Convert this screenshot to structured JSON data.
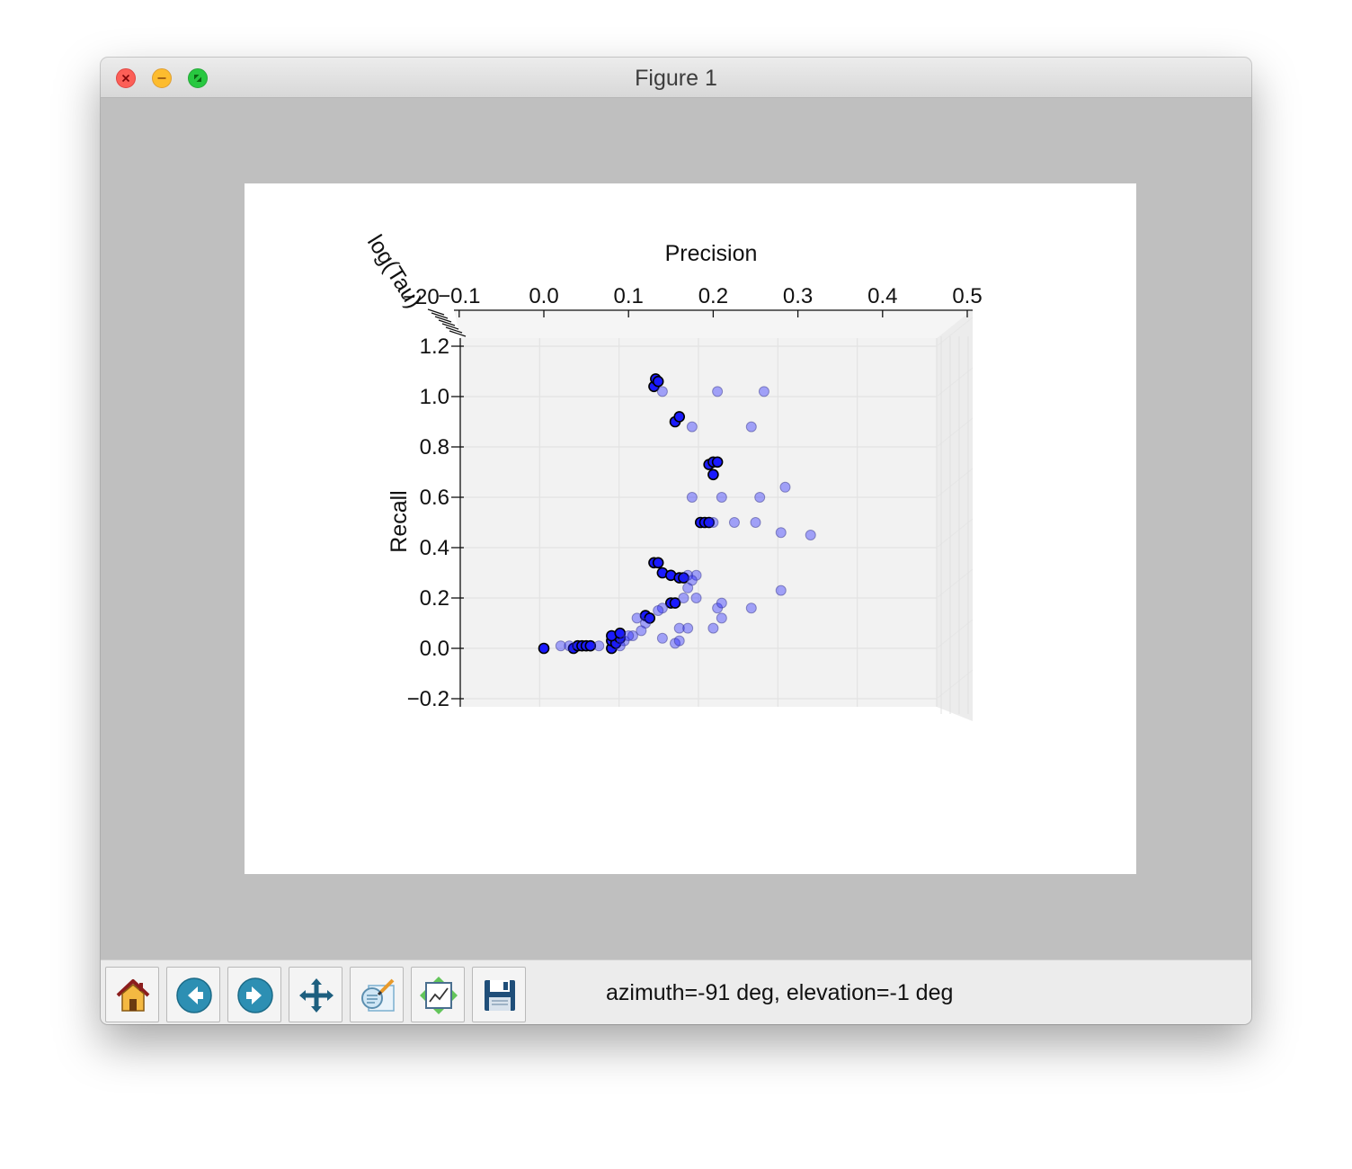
{
  "window": {
    "title": "Figure 1"
  },
  "toolbar": {
    "buttons": [
      {
        "name": "home-button",
        "icon": "home-icon"
      },
      {
        "name": "back-button",
        "icon": "arrow-left-icon"
      },
      {
        "name": "forward-button",
        "icon": "arrow-right-icon"
      },
      {
        "name": "pan-button",
        "icon": "move-arrows-icon"
      },
      {
        "name": "zoom-button",
        "icon": "zoom-rect-icon"
      },
      {
        "name": "subplots-button",
        "icon": "subplots-icon"
      },
      {
        "name": "save-button",
        "icon": "floppy-disk-icon"
      }
    ],
    "status": "azimuth=-91 deg, elevation=-1 deg"
  },
  "chart_data": {
    "type": "scatter",
    "projection": "3d",
    "view": {
      "azimuth": -91,
      "elevation": -1
    },
    "xlabel": "Precision",
    "ylabel": "Recall",
    "zlabel": "log(Tau)",
    "xlim": [
      -0.1,
      0.5
    ],
    "ylim": [
      -0.2,
      1.2
    ],
    "x_ticks": [
      "−0.1",
      "0.0",
      "0.1",
      "0.2",
      "0.3",
      "0.4",
      "0.5"
    ],
    "y_ticks": [
      "−0.2",
      "0.0",
      "0.2",
      "0.4",
      "0.6",
      "0.8",
      "1.0",
      "1.2"
    ],
    "z_tick_fragment": "−20",
    "grid": true,
    "colors": {
      "marker": "#1a1aff",
      "edge": "#000000",
      "pane": "#f2f2f2",
      "window_bg": "#bfbfbf"
    },
    "series": [
      {
        "marker": "circle",
        "points": [
          [
            0.0,
            0.0
          ],
          [
            0.035,
            0.0
          ],
          [
            0.04,
            0.01
          ],
          [
            0.045,
            0.01
          ],
          [
            0.05,
            0.01
          ],
          [
            0.055,
            0.01
          ],
          [
            0.08,
            0.0
          ],
          [
            0.08,
            0.03
          ],
          [
            0.085,
            0.02
          ],
          [
            0.09,
            0.04
          ],
          [
            0.08,
            0.05
          ],
          [
            0.09,
            0.06
          ],
          [
            0.12,
            0.13
          ],
          [
            0.125,
            0.12
          ],
          [
            0.15,
            0.18
          ],
          [
            0.155,
            0.18
          ],
          [
            0.13,
            0.34
          ],
          [
            0.135,
            0.34
          ],
          [
            0.14,
            0.3
          ],
          [
            0.15,
            0.29
          ],
          [
            0.16,
            0.28
          ],
          [
            0.165,
            0.28
          ],
          [
            0.185,
            0.5
          ],
          [
            0.19,
            0.5
          ],
          [
            0.195,
            0.5
          ],
          [
            0.195,
            0.73
          ],
          [
            0.2,
            0.74
          ],
          [
            0.205,
            0.74
          ],
          [
            0.2,
            0.69
          ],
          [
            0.155,
            0.9
          ],
          [
            0.16,
            0.92
          ],
          [
            0.13,
            1.04
          ],
          [
            0.132,
            1.07
          ],
          [
            0.135,
            1.06
          ],
          [
            0.26,
            1.02
          ],
          [
            0.14,
            1.02
          ],
          [
            0.205,
            1.02
          ],
          [
            0.245,
            0.88
          ],
          [
            0.175,
            0.88
          ],
          [
            0.285,
            0.64
          ],
          [
            0.175,
            0.6
          ],
          [
            0.21,
            0.6
          ],
          [
            0.255,
            0.6
          ],
          [
            0.2,
            0.5
          ],
          [
            0.225,
            0.5
          ],
          [
            0.25,
            0.5
          ],
          [
            0.28,
            0.46
          ],
          [
            0.315,
            0.45
          ],
          [
            0.17,
            0.29
          ],
          [
            0.18,
            0.29
          ],
          [
            0.175,
            0.27
          ],
          [
            0.17,
            0.24
          ],
          [
            0.28,
            0.23
          ],
          [
            0.165,
            0.2
          ],
          [
            0.18,
            0.2
          ],
          [
            0.205,
            0.16
          ],
          [
            0.21,
            0.18
          ],
          [
            0.245,
            0.16
          ],
          [
            0.21,
            0.12
          ],
          [
            0.14,
            0.16
          ],
          [
            0.135,
            0.15
          ],
          [
            0.11,
            0.12
          ],
          [
            0.12,
            0.1
          ],
          [
            0.115,
            0.07
          ],
          [
            0.105,
            0.05
          ],
          [
            0.095,
            0.03
          ],
          [
            0.1,
            0.05
          ],
          [
            0.16,
            0.08
          ],
          [
            0.17,
            0.08
          ],
          [
            0.2,
            0.08
          ],
          [
            0.14,
            0.04
          ],
          [
            0.155,
            0.02
          ],
          [
            0.16,
            0.03
          ],
          [
            0.02,
            0.01
          ],
          [
            0.03,
            0.01
          ],
          [
            0.065,
            0.01
          ],
          [
            0.09,
            0.01
          ]
        ]
      }
    ]
  }
}
